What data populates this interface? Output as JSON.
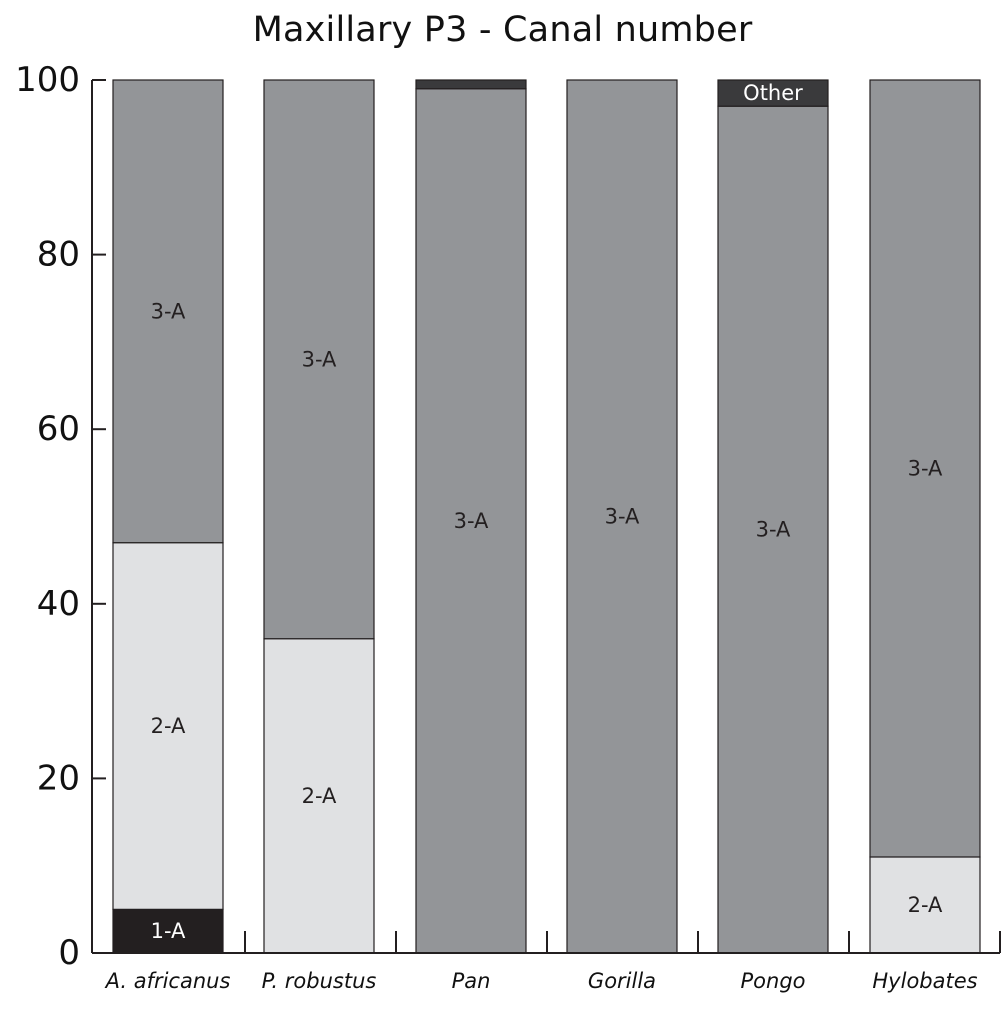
{
  "chart_data": {
    "type": "bar",
    "stacked": true,
    "title": "Maxillary P3 - Canal number",
    "xlabel": "",
    "ylabel": "",
    "ylim": [
      0,
      100
    ],
    "yticks": [
      0,
      20,
      40,
      60,
      80,
      100
    ],
    "grid": false,
    "categories": [
      "A. africanus",
      "P. robustus",
      "Pan",
      "Gorilla",
      "Pongo",
      "Hylobates"
    ],
    "series": [
      {
        "name": "1-A",
        "color": "#231f20",
        "label_color": "#ffffff",
        "values": [
          5,
          0,
          0,
          0,
          0,
          0
        ]
      },
      {
        "name": "2-A",
        "color": "#e0e1e3",
        "label_color": "#231f20",
        "values": [
          42,
          36,
          0,
          0,
          0,
          11
        ]
      },
      {
        "name": "3-A",
        "color": "#939598",
        "label_color": "#231f20",
        "values": [
          53,
          64,
          99,
          100,
          97,
          89
        ]
      },
      {
        "name": "Other",
        "color": "#3a3a3c",
        "label_color": "#ffffff",
        "values": [
          0,
          0,
          1,
          0,
          3,
          0
        ]
      }
    ],
    "segment_labels": [
      [
        "1-A",
        "2-A",
        "3-A",
        ""
      ],
      [
        "",
        "2-A",
        "3-A",
        ""
      ],
      [
        "",
        "",
        "3-A",
        ""
      ],
      [
        "",
        "",
        "3-A",
        ""
      ],
      [
        "",
        "",
        "3-A",
        "Other"
      ],
      [
        "",
        "2-A",
        "3-A",
        ""
      ]
    ]
  }
}
